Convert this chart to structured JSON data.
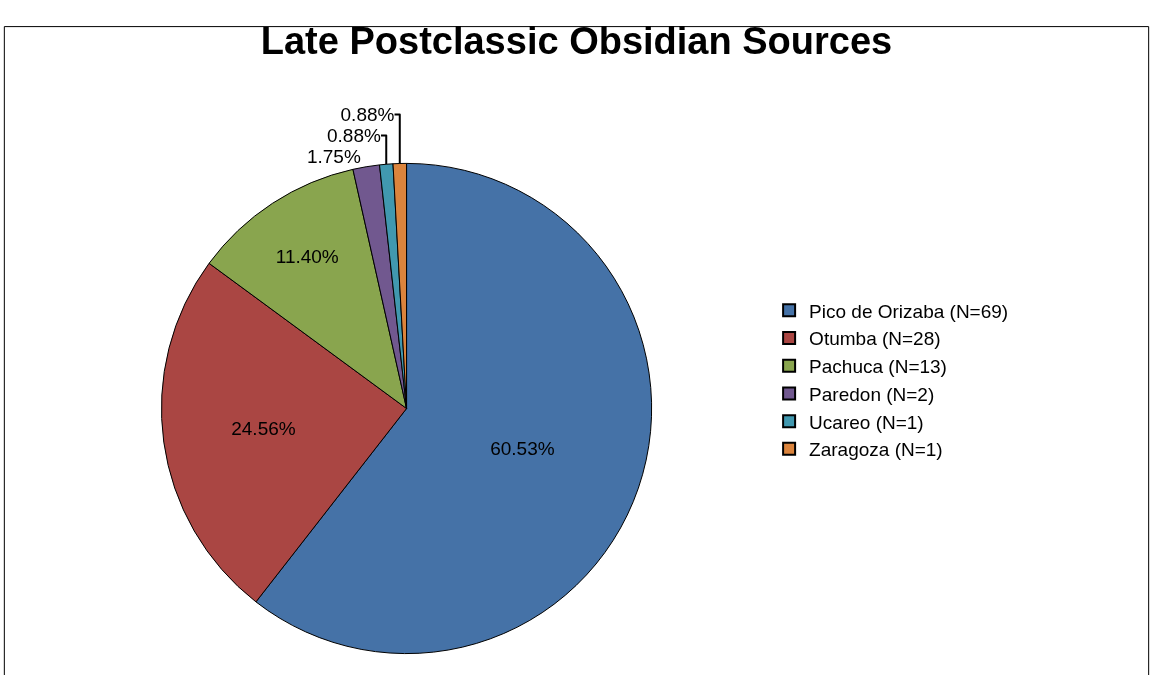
{
  "chart_data": {
    "type": "pie",
    "title": "Late Postclassic Obsidian Sources",
    "categories": [
      "Pico de Orizaba (N=69)",
      "Otumba (N=28)",
      "Pachuca (N=13)",
      "Paredon (N=2)",
      "Ucareo (N=1)",
      "Zaragoza (N=1)"
    ],
    "values": [
      60.53,
      24.56,
      11.4,
      1.75,
      0.88,
      0.88
    ],
    "value_labels": [
      "60.53%",
      "24.56%",
      "11.40%",
      "1.75%",
      "0.88%",
      "0.88%"
    ],
    "colors": [
      "#4572a7",
      "#aa4643",
      "#89a54e",
      "#71588f",
      "#4198af",
      "#db843d"
    ],
    "legend": "right"
  }
}
